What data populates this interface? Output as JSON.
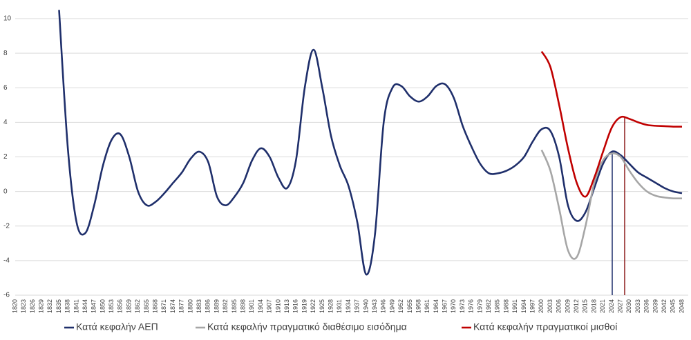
{
  "chart_data": {
    "type": "line",
    "x": [
      1820,
      1823,
      1826,
      1829,
      1832,
      1835,
      1838,
      1841,
      1844,
      1847,
      1850,
      1853,
      1856,
      1859,
      1862,
      1865,
      1868,
      1871,
      1874,
      1877,
      1880,
      1883,
      1886,
      1889,
      1892,
      1895,
      1898,
      1901,
      1904,
      1907,
      1910,
      1913,
      1916,
      1919,
      1922,
      1925,
      1928,
      1931,
      1934,
      1937,
      1940,
      1943,
      1946,
      1949,
      1952,
      1955,
      1958,
      1961,
      1964,
      1967,
      1970,
      1973,
      1976,
      1979,
      1982,
      1985,
      1988,
      1991,
      1994,
      1997,
      2000,
      2003,
      2006,
      2009,
      2012,
      2015,
      2018,
      2021,
      2024,
      2027,
      2030,
      2033,
      2036,
      2039,
      2042,
      2045,
      2048
    ],
    "series": [
      {
        "name": "Κατά κεφαλήν ΑΕΠ",
        "color": "#1f2f6b",
        "values": [
          null,
          null,
          null,
          null,
          null,
          10.5,
          2.5,
          -1.8,
          -2.4,
          -0.8,
          1.5,
          3.0,
          3.3,
          2.0,
          0.0,
          -0.8,
          -0.6,
          -0.1,
          0.5,
          1.1,
          1.9,
          2.3,
          1.7,
          -0.3,
          -0.8,
          -0.3,
          0.5,
          1.8,
          2.5,
          2.0,
          0.8,
          0.2,
          1.8,
          6.0,
          8.2,
          6.0,
          3.2,
          1.5,
          0.3,
          -1.8,
          -4.8,
          -2.5,
          4.0,
          6.0,
          6.1,
          5.5,
          5.2,
          5.5,
          6.1,
          6.2,
          5.4,
          3.8,
          2.6,
          1.6,
          1.05,
          1.05,
          1.2,
          1.5,
          2.0,
          2.9,
          3.6,
          3.5,
          2.0,
          -0.8,
          -1.7,
          -1.2,
          0.2,
          1.6,
          2.3,
          2.1,
          1.6,
          1.1,
          0.8,
          0.5,
          0.2,
          0.0,
          -0.1
        ]
      },
      {
        "name": "Κατά κεφαλήν πραγματικό διαθέσιμο εισόδημα",
        "color": "#a6a6a6",
        "values": [
          null,
          null,
          null,
          null,
          null,
          null,
          null,
          null,
          null,
          null,
          null,
          null,
          null,
          null,
          null,
          null,
          null,
          null,
          null,
          null,
          null,
          null,
          null,
          null,
          null,
          null,
          null,
          null,
          null,
          null,
          null,
          null,
          null,
          null,
          null,
          null,
          null,
          null,
          null,
          null,
          null,
          null,
          null,
          null,
          null,
          null,
          null,
          null,
          null,
          null,
          null,
          null,
          null,
          null,
          null,
          null,
          null,
          null,
          null,
          null,
          2.4,
          1.2,
          -1.0,
          -3.4,
          -3.8,
          -2.0,
          0.5,
          1.8,
          2.2,
          2.0,
          1.2,
          0.5,
          0.0,
          -0.25,
          -0.35,
          -0.4,
          -0.4
        ]
      },
      {
        "name": "Κατά κεφαλήν πραγματικοί μισθοί",
        "color": "#c00000",
        "values": [
          null,
          null,
          null,
          null,
          null,
          null,
          null,
          null,
          null,
          null,
          null,
          null,
          null,
          null,
          null,
          null,
          null,
          null,
          null,
          null,
          null,
          null,
          null,
          null,
          null,
          null,
          null,
          null,
          null,
          null,
          null,
          null,
          null,
          null,
          null,
          null,
          null,
          null,
          null,
          null,
          null,
          null,
          null,
          null,
          null,
          null,
          null,
          null,
          null,
          null,
          null,
          null,
          null,
          null,
          null,
          null,
          null,
          null,
          null,
          null,
          8.1,
          7.2,
          5.0,
          2.5,
          0.5,
          -0.3,
          0.8,
          2.3,
          3.7,
          4.3,
          4.2,
          4.0,
          3.85,
          3.8,
          3.78,
          3.75,
          3.75
        ]
      }
    ],
    "xlim": [
      1820,
      2048
    ],
    "xticks": [
      1820,
      1823,
      1826,
      1829,
      1832,
      1835,
      1838,
      1841,
      1844,
      1847,
      1850,
      1853,
      1856,
      1859,
      1862,
      1865,
      1868,
      1871,
      1874,
      1877,
      1880,
      1883,
      1886,
      1889,
      1892,
      1895,
      1898,
      1901,
      1904,
      1907,
      1910,
      1913,
      1916,
      1919,
      1922,
      1925,
      1928,
      1931,
      1934,
      1937,
      1940,
      1943,
      1946,
      1949,
      1952,
      1955,
      1958,
      1961,
      1964,
      1967,
      1970,
      1973,
      1976,
      1979,
      1982,
      1985,
      1988,
      1991,
      1994,
      1997,
      2000,
      2003,
      2006,
      2009,
      2012,
      2015,
      2018,
      2021,
      2024,
      2027,
      2030,
      2033,
      2036,
      2039,
      2042,
      2045,
      2048
    ],
    "ylim": [
      -6,
      10
    ],
    "yticks": [
      -6,
      -4,
      -2,
      0,
      2,
      4,
      6,
      8,
      10
    ],
    "grid": true,
    "legend": "bottom"
  }
}
